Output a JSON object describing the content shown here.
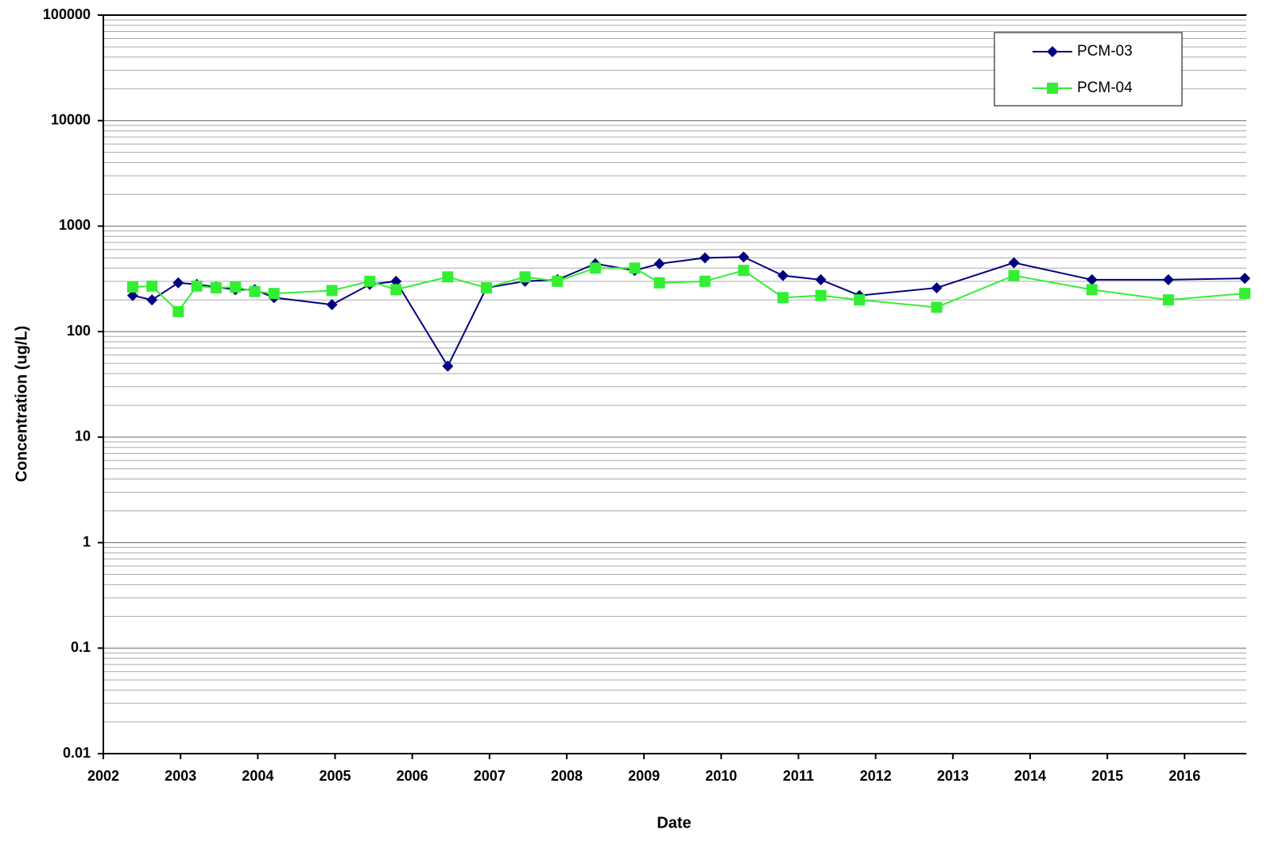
{
  "chart_data": {
    "type": "line",
    "x_label": "Date",
    "y_label": "Concentration (ug/L)",
    "x": [
      2002.38,
      2002.63,
      2002.97,
      2003.21,
      2003.46,
      2003.71,
      2003.96,
      2004.21,
      2004.96,
      2005.45,
      2005.79,
      2006.46,
      2006.96,
      2007.46,
      2007.88,
      2008.37,
      2008.88,
      2009.2,
      2009.79,
      2010.29,
      2010.8,
      2011.29,
      2011.79,
      2012.79,
      2013.79,
      2014.8,
      2015.79,
      2016.78
    ],
    "series": [
      {
        "name": "PCM-03",
        "color": "#000080",
        "marker": "diamond",
        "values": [
          220,
          200,
          290,
          280,
          265,
          250,
          250,
          210,
          180,
          280,
          300,
          47,
          260,
          300,
          310,
          440,
          380,
          440,
          500,
          510,
          340,
          310,
          220,
          260,
          450,
          310,
          310,
          320
        ]
      },
      {
        "name": "PCM-04",
        "color": "#33ee33",
        "marker": "square",
        "values": [
          265,
          270,
          155,
          270,
          260,
          265,
          240,
          230,
          245,
          300,
          250,
          330,
          260,
          330,
          300,
          400,
          400,
          290,
          300,
          380,
          210,
          220,
          200,
          170,
          340,
          250,
          200,
          230
        ]
      }
    ],
    "xlim": [
      2002,
      2016.8
    ],
    "xticks": [
      2002,
      2003,
      2004,
      2005,
      2006,
      2007,
      2008,
      2009,
      2010,
      2011,
      2012,
      2013,
      2014,
      2015,
      2016
    ],
    "ylim": [
      0.01,
      100000
    ],
    "yticks": [
      0.01,
      0.1,
      1,
      10,
      100,
      1000,
      10000,
      100000
    ],
    "log_y": true,
    "grid": true,
    "legend": "upper right"
  }
}
